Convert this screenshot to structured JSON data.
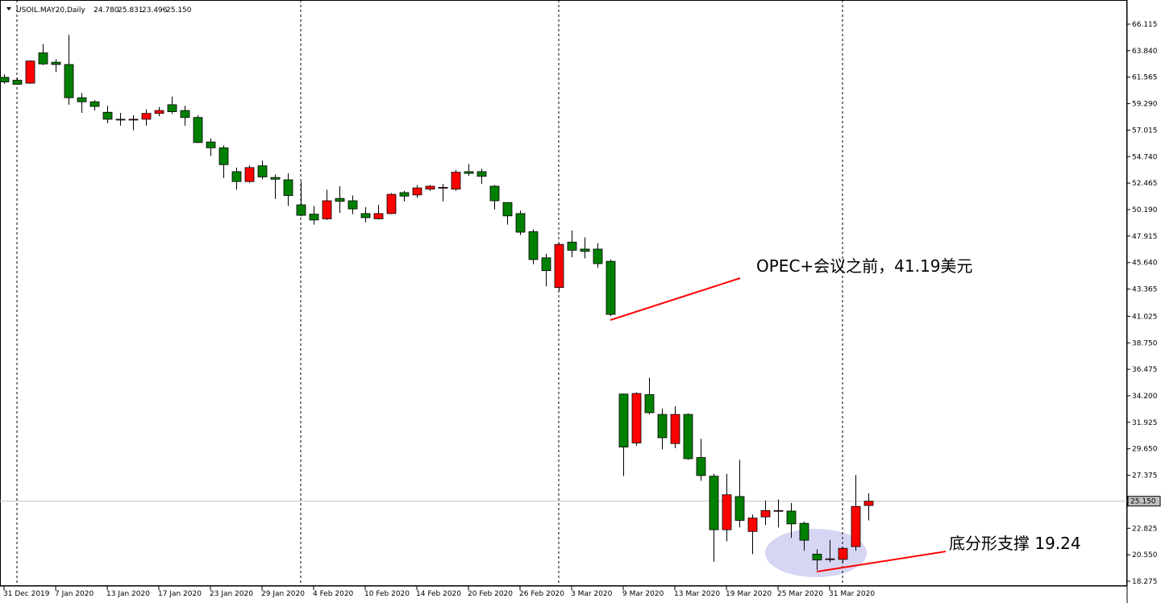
{
  "chart_data": {
    "type": "candlestick",
    "title": "USOIL.MAY20,Daily",
    "header_values": [
      {
        "value": 24.78,
        "label": "24.780"
      },
      {
        "value": 25.831,
        "label": "25.831"
      },
      {
        "value": 23.496,
        "label": "23.496"
      },
      {
        "value": 25.15,
        "label": "25.150"
      }
    ],
    "categories": [
      "31 Dec 2019",
      null,
      null,
      null,
      "7 Jan 2020",
      null,
      null,
      null,
      "13 Jan 2020",
      null,
      null,
      null,
      "17 Jan 2020",
      null,
      null,
      null,
      "23 Jan 2020",
      null,
      null,
      null,
      "29 Jan 2020",
      null,
      null,
      null,
      "4 Feb 2020",
      null,
      null,
      null,
      "10 Feb 2020",
      null,
      null,
      null,
      "14 Feb 2020",
      null,
      null,
      null,
      "20 Feb 2020",
      null,
      null,
      null,
      "26 Feb 2020",
      null,
      null,
      null,
      "3 Mar 2020",
      null,
      null,
      null,
      "9 Mar 2020",
      null,
      null,
      null,
      "13 Mar 2020",
      null,
      null,
      null,
      "19 Mar 2020",
      null,
      null,
      null,
      "25 Mar 2020",
      null,
      null,
      null,
      "31 Mar 2020",
      null,
      null,
      null
    ],
    "open": [
      61.55,
      61.3,
      61.05,
      63.65,
      62.85,
      62.65,
      59.8,
      59.45,
      58.55,
      57.95,
      57.9,
      57.95,
      58.45,
      59.2,
      58.7,
      58.1,
      56.0,
      55.5,
      53.45,
      52.6,
      53.95,
      52.95,
      52.75,
      50.6,
      49.8,
      49.4,
      51.15,
      50.95,
      49.85,
      49.4,
      49.85,
      51.65,
      51.45,
      51.95,
      52.05,
      51.95,
      53.45,
      53.45,
      52.2,
      50.8,
      49.85,
      48.3,
      46.05,
      43.5,
      47.4,
      46.8,
      46.8,
      45.75,
      34.35,
      30.15,
      34.3,
      32.6,
      30.1,
      32.6,
      28.9,
      27.3,
      22.7,
      25.55,
      22.55,
      23.8,
      24.3,
      24.3,
      23.25,
      20.6,
      20.15,
      20.15,
      21.25,
      24.78
    ],
    "high": [
      61.8,
      61.5,
      63.0,
      64.4,
      63.1,
      65.2,
      60.2,
      59.6,
      59.1,
      58.5,
      58.3,
      58.8,
      59.0,
      59.9,
      59.1,
      58.3,
      56.3,
      55.7,
      53.8,
      54.0,
      54.4,
      53.2,
      53.3,
      52.6,
      50.5,
      51.9,
      52.2,
      51.4,
      50.4,
      50.6,
      51.6,
      51.8,
      52.3,
      52.3,
      52.4,
      53.6,
      54.1,
      53.7,
      52.3,
      50.8,
      50.1,
      48.5,
      46.4,
      47.3,
      48.4,
      47.8,
      47.3,
      45.9,
      34.4,
      34.5,
      35.75,
      33.1,
      33.3,
      32.7,
      30.5,
      27.5,
      27.5,
      28.7,
      24.0,
      25.2,
      25.3,
      25.0,
      23.4,
      21.0,
      21.8,
      21.2,
      27.4,
      25.831
    ],
    "low": [
      61.0,
      60.9,
      61.0,
      62.6,
      62.0,
      59.2,
      58.5,
      58.7,
      57.6,
      57.4,
      57.0,
      57.4,
      58.2,
      58.4,
      57.4,
      55.9,
      54.8,
      52.9,
      51.9,
      52.5,
      52.8,
      51.1,
      50.5,
      49.6,
      48.9,
      49.3,
      49.9,
      49.8,
      49.1,
      49.35,
      49.8,
      50.9,
      51.2,
      51.8,
      50.9,
      51.8,
      53.1,
      52.4,
      50.2,
      48.9,
      48.0,
      45.5,
      43.6,
      43.2,
      46.1,
      46.0,
      45.2,
      41.05,
      27.3,
      29.9,
      32.6,
      29.6,
      29.7,
      28.7,
      26.9,
      19.95,
      21.7,
      22.9,
      20.6,
      23.1,
      22.9,
      22.0,
      20.9,
      19.24,
      19.9,
      19.9,
      20.9,
      23.496
    ],
    "close": [
      61.15,
      60.95,
      62.95,
      62.7,
      62.65,
      59.8,
      59.45,
      59.05,
      57.95,
      57.9,
      57.95,
      58.45,
      58.7,
      58.6,
      58.1,
      55.95,
      55.5,
      54.05,
      52.6,
      53.8,
      53.0,
      52.8,
      51.4,
      49.7,
      49.3,
      50.95,
      50.9,
      50.25,
      49.5,
      49.85,
      51.5,
      51.35,
      52.05,
      52.2,
      52.1,
      53.4,
      53.3,
      53.05,
      50.95,
      49.65,
      48.25,
      45.9,
      44.95,
      47.2,
      46.7,
      46.6,
      45.55,
      41.19,
      29.8,
      34.4,
      32.75,
      30.6,
      32.6,
      28.8,
      27.35,
      22.7,
      25.7,
      23.5,
      23.7,
      24.35,
      24.35,
      23.2,
      21.8,
      20.1,
      20.2,
      21.1,
      24.7,
      25.15
    ],
    "up_color": "#ff0000",
    "down_color": "#008000",
    "ylim": [
      17.86,
      68.19
    ],
    "yticks": [
      {
        "value": 18.275,
        "label": "18.275"
      },
      {
        "value": 20.55,
        "label": "20.550"
      },
      {
        "value": 22.825,
        "label": "22.825"
      },
      {
        "value": 27.375,
        "label": "27.375"
      },
      {
        "value": 29.65,
        "label": "29.650"
      },
      {
        "value": 31.925,
        "label": "31.925"
      },
      {
        "value": 34.2,
        "label": "34.200"
      },
      {
        "value": 36.475,
        "label": "36.475"
      },
      {
        "value": 38.75,
        "label": "38.750"
      },
      {
        "value": 41.025,
        "label": "41.025"
      },
      {
        "value": 43.365,
        "label": "43.365"
      },
      {
        "value": 45.64,
        "label": "45.640"
      },
      {
        "value": 47.915,
        "label": "47.915"
      },
      {
        "value": 50.19,
        "label": "50.190"
      },
      {
        "value": 52.465,
        "label": "52.465"
      },
      {
        "value": 54.74,
        "label": "54.740"
      },
      {
        "value": 57.015,
        "label": "57.015"
      },
      {
        "value": 59.29,
        "label": "59.290"
      },
      {
        "value": 61.565,
        "label": "61.565"
      },
      {
        "value": 63.84,
        "label": "63.840"
      },
      {
        "value": 66.115,
        "label": "66.115"
      }
    ],
    "last_price": {
      "value": 25.15,
      "label": "25.150"
    },
    "annotations": [
      {
        "text": "OPEC+会议之前，41.19美元",
        "value": 41.19
      },
      {
        "text": "底分形支撑 19.24",
        "value": 19.24
      }
    ]
  }
}
